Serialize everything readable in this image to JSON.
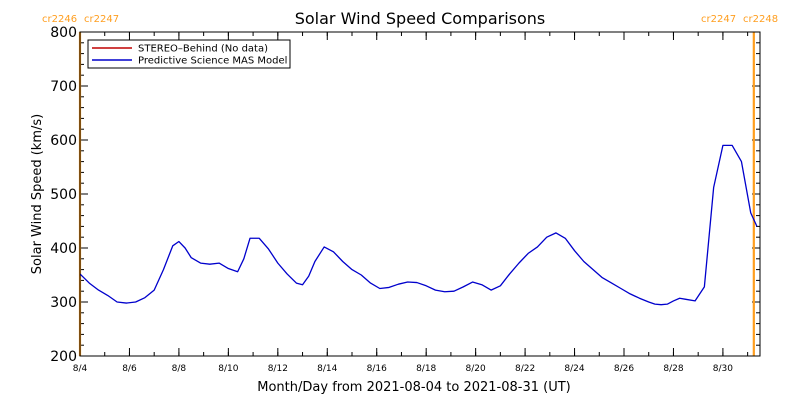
{
  "chart_data": {
    "type": "line",
    "title": "Solar Wind Speed Comparisons",
    "xlabel": "Month/Day from 2021-08-04 to 2021-08-31 (UT)",
    "ylabel": "Solar Wind Speed (km/s)",
    "ylim": [
      200,
      800
    ],
    "xlim": [
      "2021-08-04",
      "2021-08-31T12:00"
    ],
    "y_ticks": [
      200,
      300,
      400,
      500,
      600,
      700,
      800
    ],
    "x_ticks": [
      {
        "date": "2021-08-04",
        "label": "8/4"
      },
      {
        "date": "2021-08-06",
        "label": "8/6"
      },
      {
        "date": "2021-08-08",
        "label": "8/8"
      },
      {
        "date": "2021-08-10",
        "label": "8/10"
      },
      {
        "date": "2021-08-12",
        "label": "8/12"
      },
      {
        "date": "2021-08-14",
        "label": "8/14"
      },
      {
        "date": "2021-08-16",
        "label": "8/16"
      },
      {
        "date": "2021-08-18",
        "label": "8/18"
      },
      {
        "date": "2021-08-20",
        "label": "8/20"
      },
      {
        "date": "2021-08-22",
        "label": "8/22"
      },
      {
        "date": "2021-08-24",
        "label": "8/24"
      },
      {
        "date": "2021-08-26",
        "label": "8/26"
      },
      {
        "date": "2021-08-28",
        "label": "8/28"
      },
      {
        "date": "2021-08-30",
        "label": "8/30"
      }
    ],
    "carrington_markers": [
      {
        "date": "2021-08-04",
        "left_label": "cr2246",
        "right_label": "cr2247"
      },
      {
        "date": "2021-08-31T06:00",
        "left_label": "cr2247",
        "right_label": "cr2248"
      }
    ],
    "marker_color": "#ff9e1f",
    "legend": {
      "placement": "top-left",
      "entries": [
        {
          "label": "STEREO–Behind (No data)",
          "color": "#c00000"
        },
        {
          "label": "Predictive Science MAS Model",
          "color": "#0000cc"
        }
      ]
    },
    "series": [
      {
        "color": "#0000cc",
        "x": [
          "2021-08-04T00:00",
          "2021-08-04T09:00",
          "2021-08-04T18:00",
          "2021-08-05T03:00",
          "2021-08-05T12:00",
          "2021-08-05T21:00",
          "2021-08-06T06:00",
          "2021-08-06T15:00",
          "2021-08-07T00:00",
          "2021-08-07T09:00",
          "2021-08-07T18:00",
          "2021-08-08T00:00",
          "2021-08-08T06:00",
          "2021-08-08T12:00",
          "2021-08-08T21:00",
          "2021-08-09T06:00",
          "2021-08-09T15:00",
          "2021-08-10T00:00",
          "2021-08-10T09:00",
          "2021-08-10T15:00",
          "2021-08-10T21:00",
          "2021-08-11T06:00",
          "2021-08-11T15:00",
          "2021-08-12T00:00",
          "2021-08-12T09:00",
          "2021-08-12T18:00",
          "2021-08-13T00:00",
          "2021-08-13T06:00",
          "2021-08-13T12:00",
          "2021-08-13T21:00",
          "2021-08-14T06:00",
          "2021-08-14T15:00",
          "2021-08-15T00:00",
          "2021-08-15T09:00",
          "2021-08-15T18:00",
          "2021-08-16T03:00",
          "2021-08-16T12:00",
          "2021-08-16T21:00",
          "2021-08-17T06:00",
          "2021-08-17T15:00",
          "2021-08-18T00:00",
          "2021-08-18T09:00",
          "2021-08-18T18:00",
          "2021-08-19T03:00",
          "2021-08-19T12:00",
          "2021-08-19T21:00",
          "2021-08-20T06:00",
          "2021-08-20T15:00",
          "2021-08-21T00:00",
          "2021-08-21T09:00",
          "2021-08-21T18:00",
          "2021-08-22T03:00",
          "2021-08-22T12:00",
          "2021-08-22T21:00",
          "2021-08-23T06:00",
          "2021-08-23T15:00",
          "2021-08-24T00:00",
          "2021-08-24T09:00",
          "2021-08-24T18:00",
          "2021-08-25T03:00",
          "2021-08-25T12:00",
          "2021-08-25T21:00",
          "2021-08-26T06:00",
          "2021-08-26T15:00",
          "2021-08-27T00:00",
          "2021-08-27T06:00",
          "2021-08-27T12:00",
          "2021-08-27T18:00",
          "2021-08-28T00:00",
          "2021-08-28T06:00",
          "2021-08-28T12:00",
          "2021-08-28T21:00",
          "2021-08-29T06:00",
          "2021-08-29T15:00",
          "2021-08-30T00:00",
          "2021-08-30T09:00",
          "2021-08-30T18:00",
          "2021-08-31T03:00",
          "2021-08-31T09:00"
        ],
        "values": [
          352,
          335,
          322,
          312,
          300,
          298,
          300,
          308,
          322,
          360,
          404,
          412,
          400,
          382,
          372,
          370,
          372,
          362,
          356,
          380,
          418,
          418,
          398,
          372,
          352,
          335,
          332,
          348,
          375,
          402,
          393,
          375,
          360,
          350,
          335,
          325,
          327,
          333,
          337,
          336,
          330,
          322,
          319,
          320,
          328,
          337,
          332,
          322,
          330,
          352,
          372,
          390,
          402,
          420,
          428,
          418,
          395,
          375,
          360,
          345,
          335,
          325,
          315,
          307,
          300,
          296,
          295,
          296,
          302,
          307,
          305,
          302,
          328,
          512,
          590,
          590,
          560,
          465,
          440
        ]
      }
    ]
  }
}
